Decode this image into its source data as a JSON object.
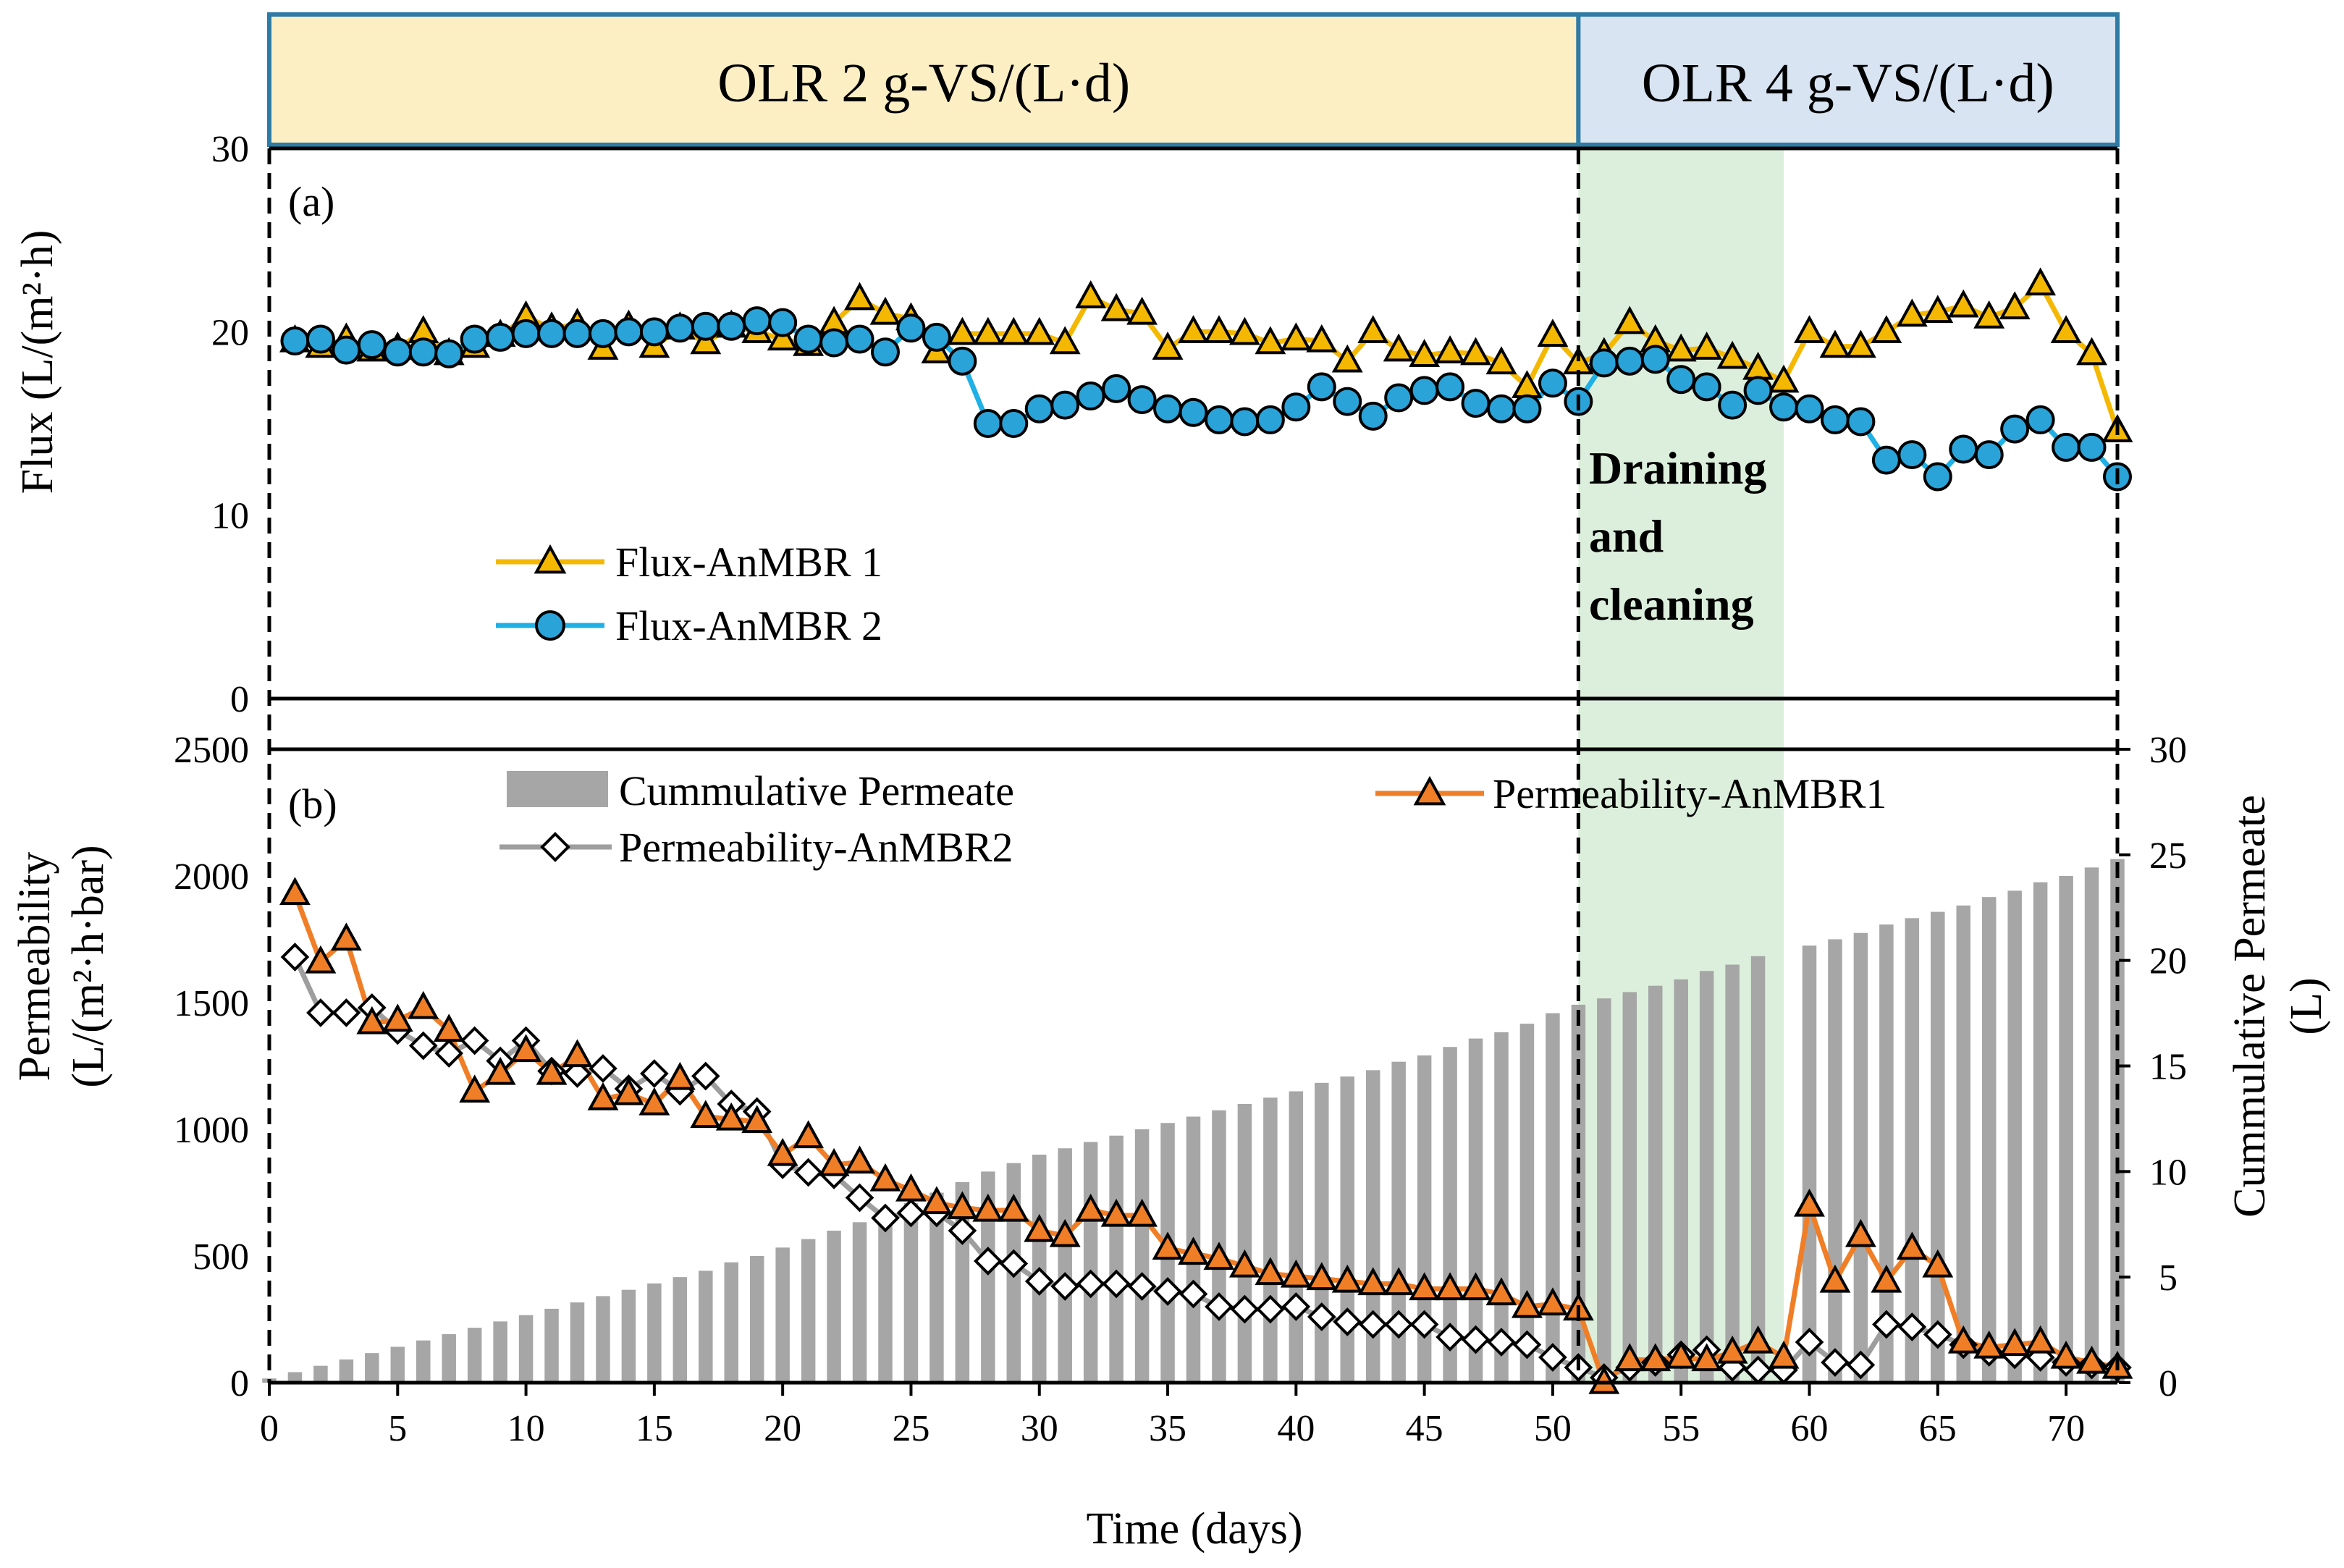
{
  "phase_bands": [
    {
      "label": "OLR 2 g-VS/(L·d)",
      "x_start": 0,
      "x_end": 51,
      "fill": "#fdefc4",
      "stroke": "#2e7ba6"
    },
    {
      "label": "OLR 4 g-VS/(L·d)",
      "x_start": 51,
      "x_end": 72,
      "fill": "#d8e4f2",
      "stroke": "#2e7ba6"
    }
  ],
  "shaded_region": {
    "x_start": 51,
    "x_end": 59,
    "color": "#dcefdc"
  },
  "annotation": {
    "lines": [
      "Draining",
      "and",
      "cleaning"
    ],
    "color": "#7b2f9e"
  },
  "colors": {
    "flux1": "#f5b800",
    "flux2": "#1fb0e6",
    "flux2_marker": "#2aa3d8",
    "perm1": "#f07e26",
    "perm2": "#9e9e9e",
    "bar": "#a6a6a6"
  },
  "chart_data": [
    {
      "type": "line",
      "panel_label": "(a)",
      "title": "",
      "xlabel": "",
      "ylabel": "Flux (L/(m²·h)",
      "xlim": [
        0,
        72
      ],
      "ylim": [
        0,
        30
      ],
      "yticks": [
        0,
        10,
        20,
        30
      ],
      "legend_position": "center-left",
      "series": [
        {
          "name": "Flux-AnMBR 1",
          "x": [
            1,
            2,
            3,
            4,
            5,
            6,
            7,
            8,
            9,
            10,
            11,
            12,
            13,
            14,
            15,
            16,
            17,
            18,
            19,
            20,
            21,
            22,
            23,
            24,
            25,
            26,
            27,
            28,
            29,
            30,
            31,
            32,
            33,
            34,
            35,
            36,
            37,
            38,
            39,
            40,
            41,
            42,
            43,
            44,
            45,
            46,
            47,
            48,
            49,
            50,
            51,
            52,
            53,
            54,
            55,
            56,
            57,
            58,
            59,
            60,
            61,
            62,
            63,
            64,
            65,
            66,
            67,
            68,
            69,
            70,
            71,
            72
          ],
          "values": [
            19.5,
            19.2,
            19.6,
            19.0,
            19.1,
            20.0,
            18.8,
            19.2,
            19.8,
            20.8,
            20.2,
            20.4,
            19.1,
            20.3,
            19.2,
            20.2,
            19.4,
            20.3,
            20.0,
            19.6,
            19.3,
            20.5,
            21.8,
            21.0,
            20.7,
            18.9,
            19.9,
            19.9,
            19.9,
            19.9,
            19.4,
            21.9,
            21.2,
            21.0,
            19.1,
            20.0,
            20.0,
            19.9,
            19.4,
            19.6,
            19.5,
            18.4,
            20.0,
            19.0,
            18.7,
            18.9,
            18.8,
            18.3,
            17.0,
            19.8,
            18.3,
            18.8,
            20.5,
            19.5,
            19.0,
            19.1,
            18.6,
            18.0,
            17.3,
            20.0,
            19.2,
            19.2,
            20.0,
            20.9,
            21.1,
            21.4,
            20.8,
            21.3,
            22.6,
            20.0,
            18.8,
            14.6
          ]
        },
        {
          "name": "Flux-AnMBR 2",
          "x": [
            1,
            2,
            3,
            4,
            5,
            6,
            7,
            8,
            9,
            10,
            11,
            12,
            13,
            14,
            15,
            16,
            17,
            18,
            19,
            20,
            21,
            22,
            23,
            24,
            25,
            26,
            27,
            28,
            29,
            30,
            31,
            32,
            33,
            34,
            35,
            36,
            37,
            38,
            39,
            40,
            41,
            42,
            43,
            44,
            45,
            46,
            47,
            48,
            49,
            50,
            51,
            52,
            53,
            54,
            55,
            56,
            57,
            58,
            59,
            60,
            61,
            62,
            63,
            64,
            65,
            66,
            67,
            68,
            69,
            70,
            71,
            72
          ],
          "values": [
            19.5,
            19.6,
            19.0,
            19.3,
            18.9,
            18.9,
            18.8,
            19.6,
            19.7,
            19.9,
            19.9,
            19.9,
            19.9,
            20.0,
            20.0,
            20.2,
            20.3,
            20.3,
            20.6,
            20.5,
            19.6,
            19.4,
            19.6,
            18.9,
            20.2,
            19.7,
            18.4,
            15.0,
            15.0,
            15.8,
            16.0,
            16.5,
            16.9,
            16.3,
            15.8,
            15.6,
            15.2,
            15.1,
            15.2,
            15.9,
            17.0,
            16.2,
            15.4,
            16.4,
            16.8,
            17.0,
            16.1,
            15.8,
            15.8,
            17.2,
            16.2,
            18.3,
            18.4,
            18.5,
            17.4,
            17.0,
            16.0,
            16.8,
            15.9,
            15.8,
            15.2,
            15.1,
            13.0,
            13.3,
            12.1,
            13.6,
            13.3,
            14.7,
            15.2,
            13.7,
            13.7,
            12.1
          ]
        }
      ]
    },
    {
      "type": "bar",
      "panel_label": "(b)",
      "title": "",
      "xlabel": "Time (days)",
      "ylabel": "Permeability (L/(m²·h·bar)",
      "ylabel_lines": [
        "Permeability",
        "(L/(m²·h·bar)"
      ],
      "y2label": "Cummulative Permeate (L)",
      "y2label_lines": [
        "Cummulative Permeate",
        "(L)"
      ],
      "xlim": [
        0,
        72
      ],
      "ylim": [
        0,
        2500
      ],
      "y2lim": [
        0,
        30
      ],
      "xticks": [
        0,
        5,
        10,
        15,
        20,
        25,
        30,
        35,
        40,
        45,
        50,
        55,
        60,
        65,
        70
      ],
      "yticks": [
        0,
        500,
        1000,
        1500,
        2000,
        2500
      ],
      "y2ticks": [
        0,
        5,
        10,
        15,
        20,
        25,
        30
      ],
      "legend_position": "top",
      "bars": {
        "name": "Cummulative Permeate",
        "axis": "right",
        "x": [
          0,
          1,
          2,
          3,
          4,
          5,
          6,
          7,
          8,
          9,
          10,
          11,
          12,
          13,
          14,
          15,
          16,
          17,
          18,
          19,
          20,
          21,
          22,
          23,
          24,
          25,
          26,
          27,
          28,
          29,
          30,
          31,
          32,
          33,
          34,
          35,
          36,
          37,
          38,
          39,
          40,
          41,
          42,
          43,
          44,
          45,
          46,
          47,
          48,
          49,
          50,
          51,
          52,
          53,
          54,
          55,
          56,
          57,
          58,
          59,
          60,
          61,
          62,
          63,
          64,
          65,
          66,
          67,
          68,
          69,
          70,
          71,
          72
        ],
        "values": [
          0.2,
          0.5,
          0.8,
          1.1,
          1.4,
          1.7,
          2.0,
          2.3,
          2.6,
          2.9,
          3.2,
          3.5,
          3.8,
          4.1,
          4.4,
          4.7,
          5.0,
          5.3,
          5.7,
          6.0,
          6.4,
          6.8,
          7.2,
          7.6,
          8.0,
          8.5,
          9.0,
          9.5,
          10.0,
          10.4,
          10.8,
          11.1,
          11.4,
          11.7,
          12.0,
          12.3,
          12.6,
          12.9,
          13.2,
          13.5,
          13.8,
          14.2,
          14.5,
          14.8,
          15.2,
          15.5,
          15.9,
          16.3,
          16.6,
          17.0,
          17.5,
          17.9,
          18.2,
          18.5,
          18.8,
          19.1,
          19.5,
          19.8,
          20.2,
          0,
          20.7,
          21.0,
          21.3,
          21.7,
          22.0,
          22.3,
          22.6,
          23.0,
          23.3,
          23.7,
          24.0,
          24.4,
          24.8
        ]
      },
      "series": [
        {
          "name": "Permeability-AnMBR1",
          "axis": "left",
          "x": [
            1,
            2,
            3,
            4,
            5,
            6,
            7,
            8,
            9,
            10,
            11,
            12,
            13,
            14,
            15,
            16,
            17,
            18,
            19,
            20,
            21,
            22,
            23,
            24,
            25,
            26,
            27,
            28,
            29,
            30,
            31,
            32,
            33,
            34,
            35,
            36,
            37,
            38,
            39,
            40,
            41,
            42,
            43,
            44,
            45,
            46,
            47,
            48,
            49,
            50,
            51,
            52,
            53,
            54,
            55,
            56,
            57,
            58,
            59,
            60,
            61,
            62,
            63,
            64,
            65,
            66,
            67,
            68,
            69,
            70,
            71,
            72
          ],
          "values": [
            1930,
            1660,
            1750,
            1420,
            1430,
            1480,
            1390,
            1150,
            1220,
            1310,
            1220,
            1290,
            1120,
            1140,
            1100,
            1200,
            1050,
            1040,
            1030,
            900,
            970,
            860,
            870,
            800,
            760,
            710,
            690,
            680,
            680,
            600,
            580,
            680,
            660,
            660,
            530,
            510,
            490,
            460,
            430,
            420,
            410,
            400,
            390,
            390,
            370,
            370,
            370,
            350,
            300,
            310,
            290,
            0,
            90,
            90,
            100,
            90,
            120,
            160,
            100,
            700,
            400,
            580,
            400,
            530,
            460,
            160,
            140,
            150,
            160,
            100,
            80,
            60
          ]
        },
        {
          "name": "Permeability-AnMBR2",
          "axis": "left",
          "x": [
            1,
            2,
            3,
            4,
            5,
            6,
            7,
            8,
            9,
            10,
            11,
            12,
            13,
            14,
            15,
            16,
            17,
            18,
            19,
            20,
            21,
            22,
            23,
            24,
            25,
            26,
            27,
            28,
            29,
            30,
            31,
            32,
            33,
            34,
            35,
            36,
            37,
            38,
            39,
            40,
            41,
            42,
            43,
            44,
            45,
            46,
            47,
            48,
            49,
            50,
            51,
            52,
            53,
            54,
            55,
            56,
            57,
            58,
            59,
            60,
            61,
            62,
            63,
            64,
            65,
            66,
            67,
            68,
            69,
            70,
            71,
            72
          ],
          "values": [
            1680,
            1460,
            1460,
            1480,
            1390,
            1330,
            1300,
            1350,
            1270,
            1350,
            1230,
            1220,
            1240,
            1160,
            1220,
            1150,
            1210,
            1100,
            1070,
            860,
            830,
            820,
            730,
            650,
            670,
            670,
            600,
            480,
            470,
            400,
            380,
            390,
            390,
            380,
            360,
            350,
            300,
            290,
            290,
            300,
            260,
            240,
            230,
            230,
            230,
            180,
            170,
            160,
            150,
            100,
            60,
            20,
            60,
            80,
            110,
            130,
            60,
            50,
            50,
            160,
            80,
            70,
            230,
            220,
            190,
            150,
            120,
            110,
            100,
            80,
            70,
            60
          ]
        }
      ]
    }
  ]
}
